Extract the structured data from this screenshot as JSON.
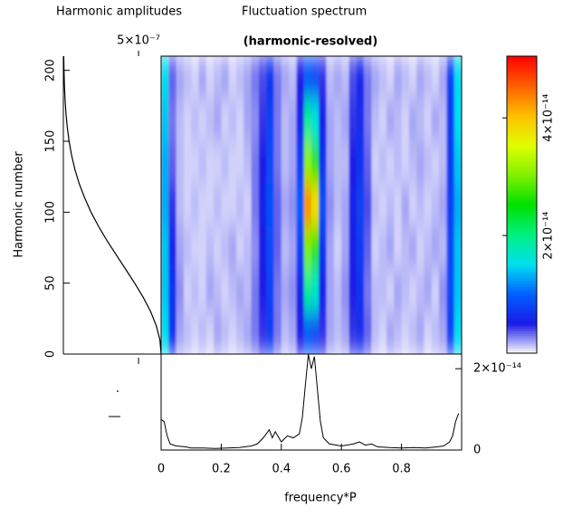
{
  "chart_data": [
    {
      "type": "line",
      "orientation": "horizontal",
      "title": "Harmonic amplitudes",
      "ylabel": "Harmonic number",
      "values": [
        6.5e-07,
        6.42e-07,
        6.18e-07,
        5.8e-07,
        5.31e-07,
        4.74e-07,
        4.13e-07,
        3.51e-07,
        2.9e-07,
        2.34e-07,
        1.84e-07,
        1.42e-07,
        1.06e-07,
        7.7e-08,
        5.5e-08,
        3.8e-08,
        2.6e-08,
        1.7e-08,
        1.1e-08,
        6.9e-09,
        4.2e-09,
        2.5e-09
      ],
      "y": [
        0,
        10,
        20,
        30,
        40,
        50,
        60,
        70,
        80,
        90,
        100,
        110,
        120,
        130,
        140,
        150,
        160,
        170,
        180,
        190,
        200,
        210
      ],
      "xlim": [
        0,
        6.5e-07
      ],
      "xticks": [
        {
          "value": 5e-07,
          "label": "5×10⁻⁷"
        }
      ],
      "ylim": [
        0,
        210
      ],
      "yticks": [
        0,
        50,
        100,
        150,
        200
      ],
      "color": "#000000"
    },
    {
      "type": "heatmap",
      "title": "Fluctuation spectrum",
      "subtitle": "(harmonic-resolved)",
      "x": [
        0.0125,
        0.0375,
        0.0625,
        0.0875,
        0.1125,
        0.1375,
        0.1625,
        0.1875,
        0.2125,
        0.2375,
        0.2625,
        0.2875,
        0.3125,
        0.3375,
        0.3625,
        0.3875,
        0.4125,
        0.4375,
        0.4625,
        0.4875,
        0.5125,
        0.5375,
        0.5625,
        0.5875,
        0.6125,
        0.6375,
        0.6625,
        0.6875,
        0.7125,
        0.7375,
        0.7625,
        0.7875,
        0.8125,
        0.8375,
        0.8625,
        0.8875,
        0.9125,
        0.9375,
        0.9625,
        0.9875
      ],
      "y": [
        15,
        45,
        75,
        105,
        135,
        165,
        195
      ],
      "z": [
        [
          1.5e-14,
          7e-15,
          2e-15,
          1.5e-15,
          1e-15,
          1.5e-15,
          1e-15,
          2e-15,
          1.5e-15,
          1e-15,
          1.5e-15,
          2e-15,
          3e-15,
          4.5e-15,
          7.5e-15,
          3e-15,
          1.5e-15,
          2e-15,
          5e-15,
          9e-15,
          8e-15,
          4.5e-15,
          2e-15,
          1.5e-15,
          2e-15,
          4.5e-15,
          6.5e-15,
          3.5e-15,
          1.5e-15,
          1e-15,
          2e-15,
          1.5e-15,
          1e-15,
          1.5e-15,
          2e-15,
          1e-15,
          1.5e-15,
          2e-15,
          8e-15,
          1.5e-14
        ],
        [
          1.4e-14,
          7e-15,
          2.5e-15,
          1e-15,
          1.5e-15,
          1e-15,
          2e-15,
          1.5e-15,
          1e-15,
          1.5e-15,
          2e-15,
          1.5e-15,
          3e-15,
          5e-15,
          8e-15,
          3e-15,
          2e-15,
          2.5e-15,
          6e-15,
          1.9e-14,
          1.7e-14,
          5.5e-15,
          2e-15,
          1.5e-15,
          2.5e-15,
          5e-15,
          7e-15,
          3e-15,
          1.5e-15,
          1.5e-15,
          1e-15,
          2e-15,
          1.5e-15,
          1e-15,
          1.5e-15,
          2e-15,
          1e-15,
          2.5e-15,
          8.5e-15,
          1.4e-14
        ],
        [
          1.4e-14,
          6e-15,
          2e-15,
          1.5e-15,
          1e-15,
          1e-15,
          1.5e-15,
          1e-15,
          1.5e-15,
          2e-15,
          1e-15,
          1.5e-15,
          2.5e-15,
          5e-15,
          8.5e-15,
          3.5e-15,
          1.5e-15,
          2e-15,
          8e-15,
          3e-14,
          2.7e-14,
          7e-15,
          2e-15,
          1e-15,
          2e-15,
          5e-15,
          7.5e-15,
          3.5e-15,
          1e-15,
          1.5e-15,
          2e-15,
          1e-15,
          1.5e-15,
          2e-15,
          1e-15,
          1.5e-15,
          2e-15,
          1.5e-15,
          8.5e-15,
          1.4e-14
        ],
        [
          1.3e-14,
          4.5e-15,
          1.5e-15,
          1e-15,
          1.5e-15,
          1e-15,
          1e-15,
          1.5e-15,
          1e-15,
          1e-15,
          1.5e-15,
          1e-15,
          3e-15,
          5.5e-15,
          9e-15,
          3.5e-15,
          2e-15,
          2.5e-15,
          1e-14,
          4.3e-14,
          3.8e-14,
          9e-15,
          2.5e-15,
          1.5e-15,
          2e-15,
          5.5e-15,
          8e-15,
          4e-15,
          1.5e-15,
          1e-15,
          1.5e-15,
          1e-15,
          2e-15,
          1e-15,
          1.5e-15,
          1e-15,
          1.5e-15,
          2e-15,
          8e-15,
          1.3e-14
        ],
        [
          1.3e-14,
          3.5e-15,
          1.5e-15,
          1e-15,
          1e-15,
          1.5e-15,
          1e-15,
          1e-15,
          1.5e-15,
          1e-15,
          1e-15,
          1.5e-15,
          3e-15,
          5e-15,
          8.5e-15,
          3e-15,
          1.5e-15,
          2e-15,
          8e-15,
          3.1e-14,
          2.7e-14,
          7e-15,
          2e-15,
          1.5e-15,
          1.5e-15,
          5e-15,
          7e-15,
          3.5e-15,
          1e-15,
          1.5e-15,
          1e-15,
          1.5e-15,
          1e-15,
          1.5e-15,
          2e-15,
          1.5e-15,
          1e-15,
          1.5e-15,
          7.5e-15,
          1.4e-14
        ],
        [
          1.4e-14,
          3e-15,
          1.5e-15,
          1e-15,
          1.5e-15,
          1e-15,
          1.5e-15,
          2e-15,
          1e-15,
          1.5e-15,
          1e-15,
          2e-15,
          2.5e-15,
          4.5e-15,
          8e-15,
          3e-15,
          1.5e-15,
          2e-15,
          6e-15,
          1.9e-14,
          1.6e-14,
          5.5e-15,
          2e-15,
          1.5e-15,
          2e-15,
          4.5e-15,
          6.5e-15,
          3e-15,
          1.5e-15,
          1e-15,
          2e-15,
          1.5e-15,
          1e-15,
          2e-15,
          1.5e-15,
          1e-15,
          2e-15,
          1.5e-15,
          7.5e-15,
          1.5e-14
        ],
        [
          1.5e-14,
          3.5e-15,
          2e-15,
          1.5e-15,
          1e-15,
          2e-15,
          1e-15,
          1.5e-15,
          2e-15,
          1e-15,
          1.5e-15,
          2e-15,
          3e-15,
          4e-15,
          7e-15,
          3e-15,
          2e-15,
          1.5e-15,
          5e-15,
          9e-15,
          8e-15,
          4.5e-15,
          1.5e-15,
          2e-15,
          1.5e-15,
          4e-15,
          6e-15,
          3e-15,
          2e-15,
          1.5e-15,
          1e-15,
          2e-15,
          1.5e-15,
          1e-15,
          2e-15,
          1.5e-15,
          1e-15,
          2e-15,
          8e-15,
          1.5e-14
        ]
      ],
      "xlim": [
        0,
        1
      ],
      "ylim": [
        0,
        210
      ],
      "zlim": [
        0,
        5.05e-14
      ],
      "zticks": [
        {
          "value": 2e-14,
          "label": "2×10⁻¹⁴"
        },
        {
          "value": 4e-14,
          "label": "4×10⁻¹⁴"
        }
      ],
      "colormap": [
        "#ffffff",
        "#1a1ae6",
        "#0060ff",
        "#00e0f0",
        "#00f080",
        "#00e000",
        "#80f000",
        "#e0ff00",
        "#ffc000",
        "#ff6000",
        "#ff0000"
      ]
    },
    {
      "type": "line",
      "xlabel": "frequency*P",
      "x": [
        0,
        0.01,
        0.02,
        0.03,
        0.05,
        0.08,
        0.1,
        0.14,
        0.18,
        0.22,
        0.26,
        0.3,
        0.32,
        0.34,
        0.35,
        0.36,
        0.37,
        0.38,
        0.4,
        0.42,
        0.44,
        0.46,
        0.47,
        0.48,
        0.49,
        0.5,
        0.51,
        0.52,
        0.53,
        0.54,
        0.56,
        0.6,
        0.64,
        0.66,
        0.68,
        0.7,
        0.72,
        0.76,
        0.8,
        0.84,
        0.88,
        0.92,
        0.94,
        0.96,
        0.97,
        0.98,
        0.99
      ],
      "values": [
        7.5e-15,
        7e-15,
        3.5e-15,
        1.5e-15,
        1e-15,
        8e-16,
        5e-16,
        5e-16,
        4e-16,
        5e-16,
        6e-16,
        1e-15,
        1.5e-15,
        3e-15,
        4e-15,
        5e-15,
        3e-15,
        4.5e-15,
        2e-15,
        3.5e-15,
        3e-15,
        4e-15,
        8e-15,
        1.6e-14,
        2.35e-14,
        2e-14,
        2.3e-14,
        1.5e-14,
        7e-15,
        3e-15,
        1.5e-15,
        1e-15,
        1.5e-15,
        2e-15,
        1.2e-15,
        1.5e-15,
        8e-16,
        6e-16,
        5e-16,
        6e-16,
        5e-16,
        8e-16,
        1e-15,
        2e-15,
        3.5e-15,
        7e-15,
        9e-15
      ],
      "xlim": [
        0,
        1
      ],
      "xticks": [
        0,
        0.2,
        0.4,
        0.6,
        0.8
      ],
      "ylim": [
        0,
        2.36e-14
      ],
      "yticks": [
        0,
        {
          "value": 2e-14,
          "label": "2×10⁻¹⁴"
        }
      ],
      "color": "#000000"
    }
  ]
}
